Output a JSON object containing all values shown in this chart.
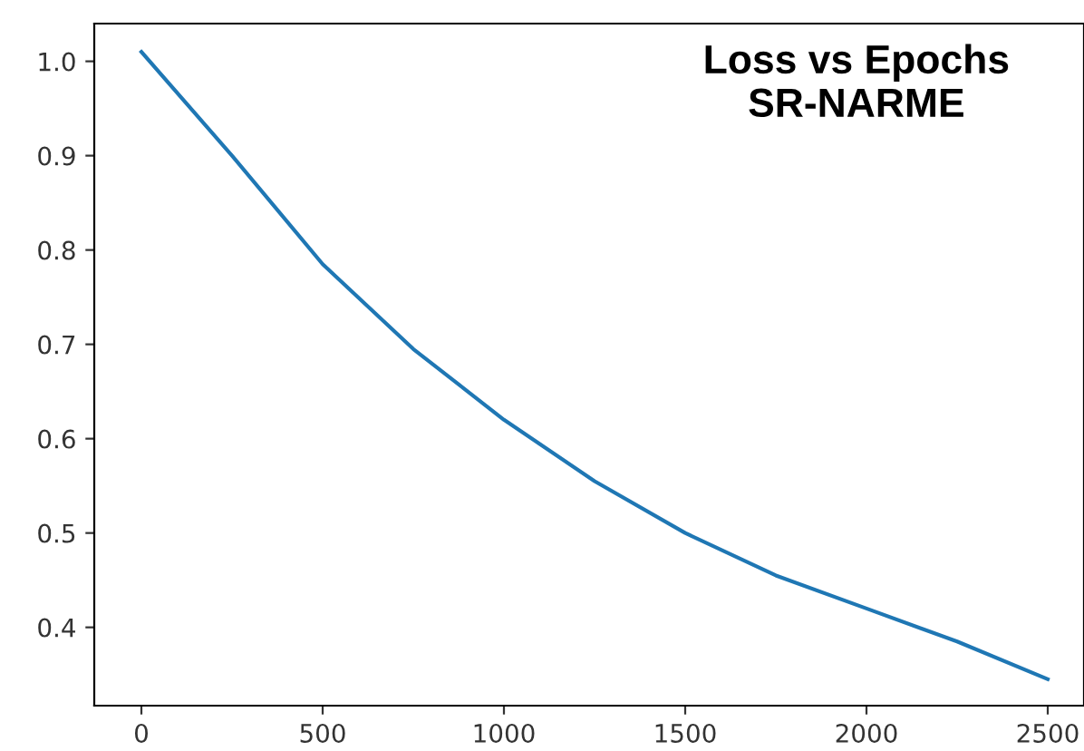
{
  "chart_data": {
    "type": "line",
    "title": "Loss vs Epochs\nSR-NARME",
    "x": [
      0,
      250,
      500,
      750,
      1000,
      1250,
      1500,
      1750,
      2000,
      2250,
      2500
    ],
    "series": [
      {
        "color": "#1f77b4",
        "values": [
          1.01,
          0.9,
          0.785,
          0.695,
          0.62,
          0.555,
          0.5,
          0.455,
          0.42,
          0.385,
          0.345
        ]
      }
    ],
    "xlim": [
      -130,
      2600
    ],
    "ylim": [
      0.317,
      1.04
    ],
    "xticks": [
      0,
      500,
      1000,
      1500,
      2000,
      2500
    ],
    "yticks": [
      {
        "value": 0.4,
        "label": "0.4"
      },
      {
        "value": 0.5,
        "label": "0.5"
      },
      {
        "value": 0.6,
        "label": "0.6"
      },
      {
        "value": 0.7,
        "label": "0.7"
      },
      {
        "value": 0.8,
        "label": "0.8"
      },
      {
        "value": 0.9,
        "label": "0.9"
      },
      {
        "value": 1.0,
        "label": "1.0"
      }
    ],
    "grid": false,
    "legend": false
  }
}
